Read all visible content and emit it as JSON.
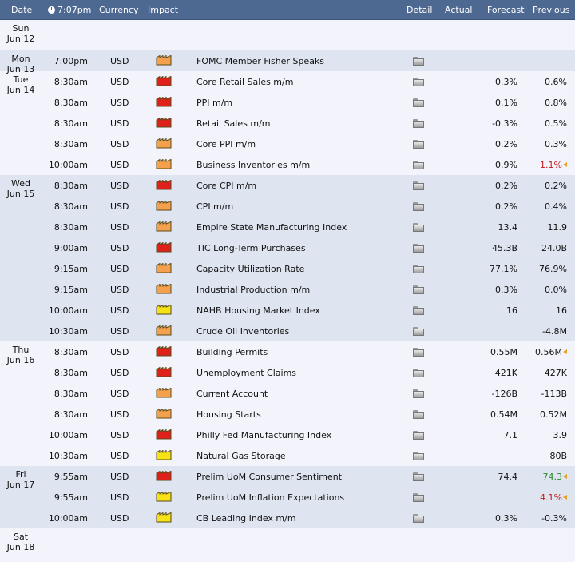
{
  "header": {
    "date": "Date",
    "time": "7:07pm",
    "currency": "Currency",
    "impact": "Impact",
    "detail": "Detail",
    "actual": "Actual",
    "forecast": "Forecast",
    "previous": "Previous"
  },
  "colors": {
    "header_bg": "#4d6891",
    "row_shade": "#dee4f0",
    "row_plain": "#f3f4fb",
    "impact_high": "#e0201b",
    "impact_medium": "#f5a04d",
    "impact_low": "#f5e316",
    "previous_worse": "#c8191b",
    "previous_better": "#2a8a2a"
  },
  "days": [
    {
      "weekday": "Sun",
      "date": "Jun 12",
      "events": []
    },
    {
      "weekday": "Mon",
      "date": "Jun 13",
      "events": [
        {
          "time": "7:00pm",
          "currency": "USD",
          "impact": "medium",
          "impact_icon": "impact-medium-icon",
          "name": "FOMC Member Fisher Speaks",
          "detail_icon": "folder-icon",
          "actual": "",
          "forecast": "",
          "previous": "",
          "previous_status": ""
        }
      ]
    },
    {
      "weekday": "Tue",
      "date": "Jun 14",
      "events": [
        {
          "time": "8:30am",
          "currency": "USD",
          "impact": "high",
          "impact_icon": "impact-high-icon",
          "name": "Core Retail Sales m/m",
          "detail_icon": "folder-icon",
          "actual": "",
          "forecast": "0.3%",
          "previous": "0.6%",
          "previous_status": ""
        },
        {
          "time": "8:30am",
          "currency": "USD",
          "impact": "high",
          "impact_icon": "impact-high-icon",
          "name": "PPI m/m",
          "detail_icon": "folder-icon",
          "actual": "",
          "forecast": "0.1%",
          "previous": "0.8%",
          "previous_status": ""
        },
        {
          "time": "8:30am",
          "currency": "USD",
          "impact": "high",
          "impact_icon": "impact-high-icon",
          "name": "Retail Sales m/m",
          "detail_icon": "folder-icon",
          "actual": "",
          "forecast": "-0.3%",
          "previous": "0.5%",
          "previous_status": ""
        },
        {
          "time": "8:30am",
          "currency": "USD",
          "impact": "medium",
          "impact_icon": "impact-medium-icon",
          "name": "Core PPI m/m",
          "detail_icon": "folder-icon",
          "actual": "",
          "forecast": "0.2%",
          "previous": "0.3%",
          "previous_status": ""
        },
        {
          "time": "10:00am",
          "currency": "USD",
          "impact": "medium",
          "impact_icon": "impact-medium-icon",
          "name": "Business Inventories m/m",
          "detail_icon": "folder-icon",
          "actual": "",
          "forecast": "0.9%",
          "previous": "1.1%",
          "previous_status": "worse"
        }
      ]
    },
    {
      "weekday": "Wed",
      "date": "Jun 15",
      "events": [
        {
          "time": "8:30am",
          "currency": "USD",
          "impact": "high",
          "impact_icon": "impact-high-icon",
          "name": "Core CPI m/m",
          "detail_icon": "folder-icon",
          "actual": "",
          "forecast": "0.2%",
          "previous": "0.2%",
          "previous_status": ""
        },
        {
          "time": "8:30am",
          "currency": "USD",
          "impact": "medium",
          "impact_icon": "impact-medium-icon",
          "name": "CPI m/m",
          "detail_icon": "folder-icon",
          "actual": "",
          "forecast": "0.2%",
          "previous": "0.4%",
          "previous_status": ""
        },
        {
          "time": "8:30am",
          "currency": "USD",
          "impact": "medium",
          "impact_icon": "impact-medium-icon",
          "name": "Empire State Manufacturing Index",
          "detail_icon": "folder-icon",
          "actual": "",
          "forecast": "13.4",
          "previous": "11.9",
          "previous_status": ""
        },
        {
          "time": "9:00am",
          "currency": "USD",
          "impact": "high",
          "impact_icon": "impact-high-icon",
          "name": "TIC Long-Term Purchases",
          "detail_icon": "folder-icon",
          "actual": "",
          "forecast": "45.3B",
          "previous": "24.0B",
          "previous_status": ""
        },
        {
          "time": "9:15am",
          "currency": "USD",
          "impact": "medium",
          "impact_icon": "impact-medium-icon",
          "name": "Capacity Utilization Rate",
          "detail_icon": "folder-icon",
          "actual": "",
          "forecast": "77.1%",
          "previous": "76.9%",
          "previous_status": ""
        },
        {
          "time": "9:15am",
          "currency": "USD",
          "impact": "medium",
          "impact_icon": "impact-medium-icon",
          "name": "Industrial Production m/m",
          "detail_icon": "folder-icon",
          "actual": "",
          "forecast": "0.3%",
          "previous": "0.0%",
          "previous_status": ""
        },
        {
          "time": "10:00am",
          "currency": "USD",
          "impact": "low",
          "impact_icon": "impact-low-icon",
          "name": "NAHB Housing Market Index",
          "detail_icon": "folder-icon",
          "actual": "",
          "forecast": "16",
          "previous": "16",
          "previous_status": ""
        },
        {
          "time": "10:30am",
          "currency": "USD",
          "impact": "medium",
          "impact_icon": "impact-medium-icon",
          "name": "Crude Oil Inventories",
          "detail_icon": "folder-icon",
          "actual": "",
          "forecast": "",
          "previous": "-4.8M",
          "previous_status": ""
        }
      ]
    },
    {
      "weekday": "Thu",
      "date": "Jun 16",
      "events": [
        {
          "time": "8:30am",
          "currency": "USD",
          "impact": "high",
          "impact_icon": "impact-high-icon",
          "name": "Building Permits",
          "detail_icon": "folder-icon",
          "actual": "",
          "forecast": "0.55M",
          "previous": "0.56M",
          "previous_status": "revised"
        },
        {
          "time": "8:30am",
          "currency": "USD",
          "impact": "high",
          "impact_icon": "impact-high-icon",
          "name": "Unemployment Claims",
          "detail_icon": "folder-icon",
          "actual": "",
          "forecast": "421K",
          "previous": "427K",
          "previous_status": ""
        },
        {
          "time": "8:30am",
          "currency": "USD",
          "impact": "medium",
          "impact_icon": "impact-medium-icon",
          "name": "Current Account",
          "detail_icon": "folder-icon",
          "actual": "",
          "forecast": "-126B",
          "previous": "-113B",
          "previous_status": ""
        },
        {
          "time": "8:30am",
          "currency": "USD",
          "impact": "medium",
          "impact_icon": "impact-medium-icon",
          "name": "Housing Starts",
          "detail_icon": "folder-icon",
          "actual": "",
          "forecast": "0.54M",
          "previous": "0.52M",
          "previous_status": ""
        },
        {
          "time": "10:00am",
          "currency": "USD",
          "impact": "high",
          "impact_icon": "impact-high-icon",
          "name": "Philly Fed Manufacturing Index",
          "detail_icon": "folder-icon",
          "actual": "",
          "forecast": "7.1",
          "previous": "3.9",
          "previous_status": ""
        },
        {
          "time": "10:30am",
          "currency": "USD",
          "impact": "low",
          "impact_icon": "impact-low-icon",
          "name": "Natural Gas Storage",
          "detail_icon": "folder-icon",
          "actual": "",
          "forecast": "",
          "previous": "80B",
          "previous_status": ""
        }
      ]
    },
    {
      "weekday": "Fri",
      "date": "Jun 17",
      "events": [
        {
          "time": "9:55am",
          "currency": "USD",
          "impact": "high",
          "impact_icon": "impact-high-icon",
          "name": "Prelim UoM Consumer Sentiment",
          "detail_icon": "folder-icon",
          "actual": "",
          "forecast": "74.4",
          "previous": "74.3",
          "previous_status": "better"
        },
        {
          "time": "9:55am",
          "currency": "USD",
          "impact": "low",
          "impact_icon": "impact-low-icon",
          "name": "Prelim UoM Inflation Expectations",
          "detail_icon": "folder-icon",
          "actual": "",
          "forecast": "",
          "previous": "4.1%",
          "previous_status": "worse"
        },
        {
          "time": "10:00am",
          "currency": "USD",
          "impact": "low",
          "impact_icon": "impact-low-icon",
          "name": "CB Leading Index m/m",
          "detail_icon": "folder-icon",
          "actual": "",
          "forecast": "0.3%",
          "previous": "-0.3%",
          "previous_status": ""
        }
      ]
    },
    {
      "weekday": "Sat",
      "date": "Jun 18",
      "events": []
    }
  ]
}
